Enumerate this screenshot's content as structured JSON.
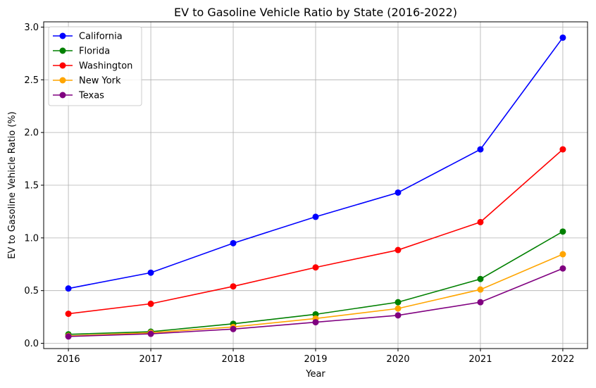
{
  "chart_data": {
    "type": "line",
    "title": "EV to Gasoline Vehicle Ratio by State (2016-2022)",
    "xlabel": "Year",
    "ylabel": "EV to Gasoline Vehicle Ratio (%)",
    "x": [
      2016,
      2017,
      2018,
      2019,
      2020,
      2021,
      2022
    ],
    "x_ticks": [
      "2016",
      "2017",
      "2018",
      "2019",
      "2020",
      "2021",
      "2022"
    ],
    "y_ticks": [
      "0.0",
      "0.5",
      "1.0",
      "1.5",
      "2.0",
      "2.5",
      "3.0"
    ],
    "ylim": [
      -0.05,
      3.05
    ],
    "grid": true,
    "legend_position": "upper-left",
    "series": [
      {
        "name": "California",
        "color": "#0000ff",
        "values": [
          0.52,
          0.67,
          0.95,
          1.2,
          1.43,
          1.84,
          2.9
        ]
      },
      {
        "name": "Florida",
        "color": "#008000",
        "values": [
          0.085,
          0.11,
          0.185,
          0.275,
          0.39,
          0.61,
          1.06
        ]
      },
      {
        "name": "Washington",
        "color": "#ff0000",
        "values": [
          0.28,
          0.375,
          0.54,
          0.72,
          0.885,
          1.15,
          1.84
        ]
      },
      {
        "name": "New York",
        "color": "#ffa500",
        "values": [
          0.07,
          0.1,
          0.155,
          0.235,
          0.33,
          0.51,
          0.845
        ]
      },
      {
        "name": "Texas",
        "color": "#800080",
        "values": [
          0.065,
          0.09,
          0.135,
          0.2,
          0.265,
          0.39,
          0.71
        ]
      }
    ]
  }
}
